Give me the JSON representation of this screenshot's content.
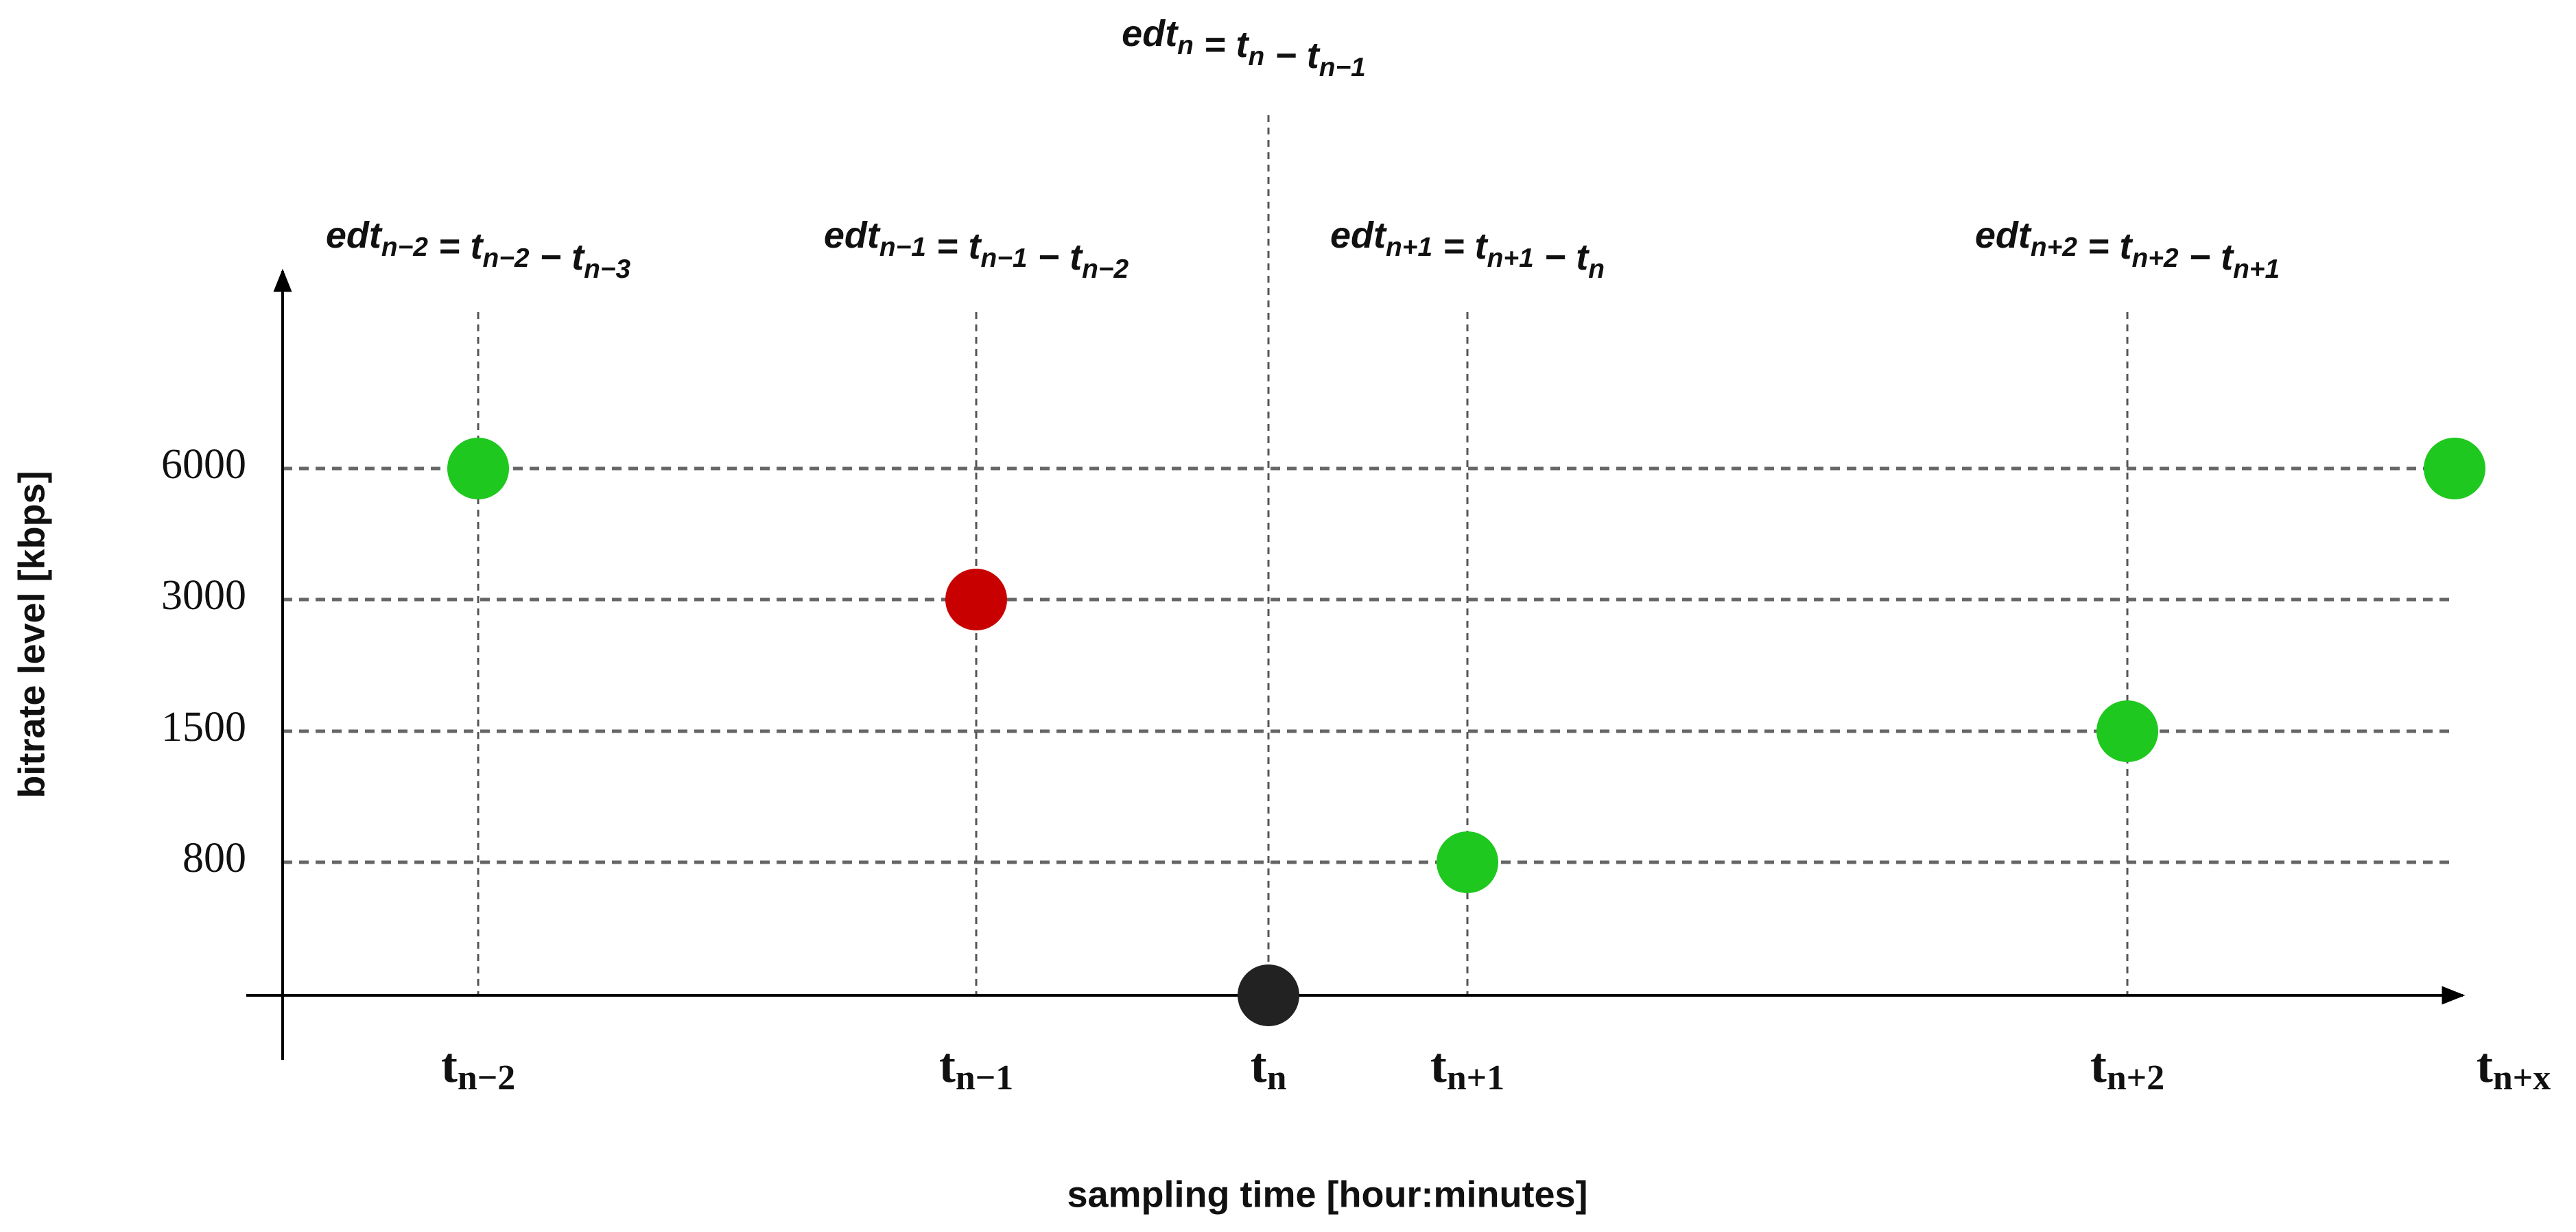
{
  "y_axis_label": "bitrate level [kbps]",
  "x_axis_label": "sampling time [hour:minutes]",
  "levels": [
    6000,
    3000,
    1500,
    800
  ],
  "times": [
    {
      "base": "t",
      "sub": "n−2",
      "level": 6000,
      "color": "#1ec81e"
    },
    {
      "base": "t",
      "sub": "n−1",
      "level": 3000,
      "color": "#c80000"
    },
    {
      "base": "t",
      "sub": "n",
      "level": null,
      "color": "#222222"
    },
    {
      "base": "t",
      "sub": "n+1",
      "level": 800,
      "color": "#1ec81e"
    },
    {
      "base": "t",
      "sub": "n+2",
      "level": 1500,
      "color": "#1ec81e"
    },
    {
      "base": "t",
      "sub": "n+x",
      "level": 6000,
      "color": "#1ec81e"
    }
  ],
  "formulas": [
    {
      "parts": [
        {
          "text": "edt",
          "sub": "n−2"
        },
        {
          "text": " = t",
          "sub": "n−2"
        },
        {
          "text": " − t",
          "sub": "n−3"
        }
      ]
    },
    {
      "parts": [
        {
          "text": "edt",
          "sub": "n−1"
        },
        {
          "text": " = t",
          "sub": "n−1"
        },
        {
          "text": " − t",
          "sub": "n−2"
        }
      ]
    },
    {
      "parts": [
        {
          "text": "edt",
          "sub": "n"
        },
        {
          "text": " = t",
          "sub": "n"
        },
        {
          "text": " − t",
          "sub": "n−1"
        }
      ]
    },
    {
      "parts": [
        {
          "text": "edt",
          "sub": "n+1"
        },
        {
          "text": " = t",
          "sub": "n+1"
        },
        {
          "text": " − t",
          "sub": "n"
        }
      ]
    },
    {
      "parts": [
        {
          "text": "edt",
          "sub": "n+2"
        },
        {
          "text": " = t",
          "sub": "n+2"
        },
        {
          "text": " − t",
          "sub": "n+1"
        }
      ]
    }
  ]
}
